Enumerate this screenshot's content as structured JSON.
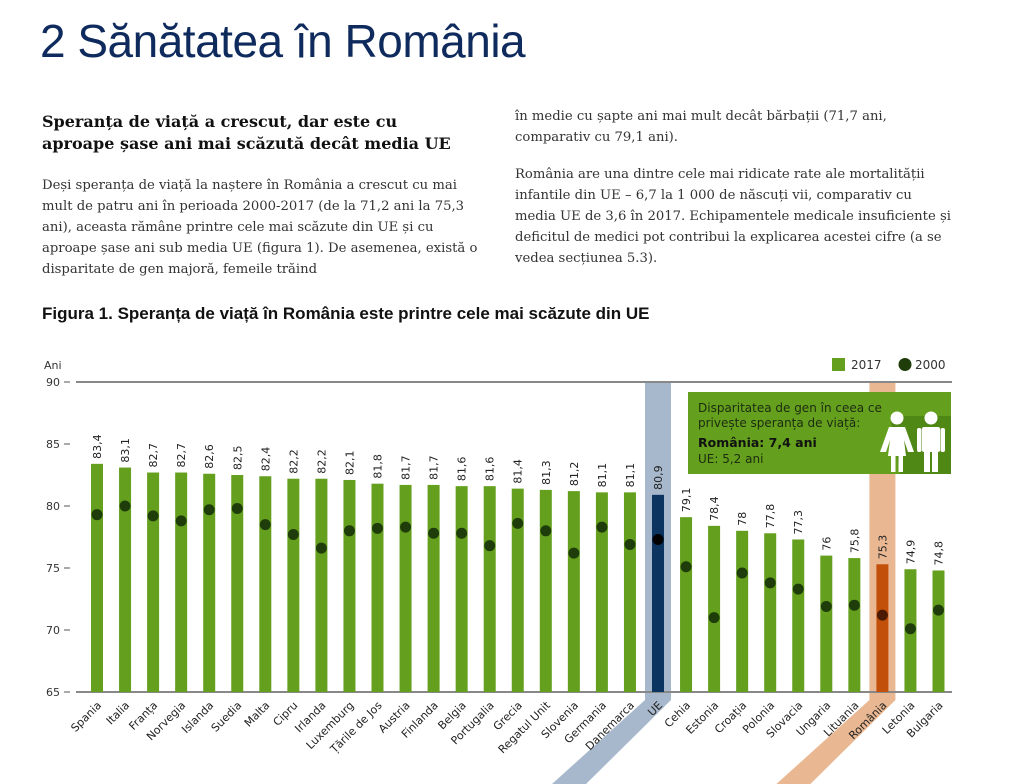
{
  "header": {
    "title": "2 Sănătatea în România"
  },
  "article": {
    "subheading": "Speranța de viață a crescut, dar este cu aproape șase ani mai scăzută decât media UE",
    "paragraph1": "Deși speranța de viață la naștere în România a crescut cu mai mult de patru ani în perioada 2000-2017 (de la 71,2 ani la 75,3 ani), aceasta rămâne printre cele mai scăzute din UE și cu aproape șase ani sub media UE (figura 1). De asemenea, există o disparitate de gen majoră, femeile trăind",
    "paragraph2": "în medie cu șapte ani mai mult decât bărbații (71,7 ani, comparativ cu 79,1 ani).",
    "paragraph3": "România are una dintre cele mai ridicate rate ale mortalității infantile din UE – 6,7 la 1 000 de născuți vii, comparativ cu media UE de 3,6 în 2017. Echipamentele medicale insuficiente și deficitul de medici pot contribui la explicarea acestei cifre (a se vedea secțiunea 5.3)."
  },
  "figure": {
    "title": "Figura 1. Speranța de viață în România este printre cele mai scăzute din UE",
    "info_box": {
      "line1": "Disparitatea de gen în ceea ce",
      "line2": "privește speranța de viață:",
      "romania": "România: 7,4 ani",
      "eu": "UE: 5,2 ani"
    }
  },
  "colors": {
    "bar": "#64a01e",
    "dot": "#1f3d0a",
    "eu_bar": "#0b3461",
    "eu_band": "#a8b8cc",
    "ro_bar": "#c2500a",
    "ro_band": "#e9b892",
    "box": "#64a01e",
    "axis": "#888888"
  },
  "chart_data": {
    "type": "bar",
    "title": "Figura 1. Speranța de viață în România este printre cele mai scăzute din UE",
    "ylabel": "Ani",
    "xlabel": "",
    "ylim": [
      65,
      90
    ],
    "yticks": [
      65,
      70,
      75,
      80,
      85,
      90
    ],
    "legend": {
      "position": "top-right",
      "entries": [
        "2017",
        "2000"
      ]
    },
    "categories": [
      "Spania",
      "Italia",
      "Franța",
      "Norvegia",
      "Islanda",
      "Suedia",
      "Malta",
      "Cipru",
      "Irlanda",
      "Luxemburg",
      "Țările de Jos",
      "Austria",
      "Finlanda",
      "Belgia",
      "Portugalia",
      "Grecia",
      "Regatul Unit",
      "Slovenia",
      "Germania",
      "Danemarca",
      "UE",
      "Cehia",
      "Estonia",
      "Croația",
      "Polonia",
      "Slovacia",
      "Ungaria",
      "Lituania",
      "România",
      "Letonia",
      "Bulgaria"
    ],
    "series": [
      {
        "name": "2017",
        "kind": "bar",
        "values": [
          83.4,
          83.1,
          82.7,
          82.7,
          82.6,
          82.5,
          82.4,
          82.2,
          82.2,
          82.1,
          81.8,
          81.7,
          81.7,
          81.6,
          81.6,
          81.4,
          81.3,
          81.2,
          81.1,
          81.1,
          80.9,
          79.1,
          78.4,
          78,
          77.8,
          77.3,
          76,
          75.8,
          75.3,
          74.9,
          74.8
        ],
        "labels": [
          "83,4",
          "83,1",
          "82,7",
          "82,7",
          "82,6",
          "82,5",
          "82,4",
          "82,2",
          "82,2",
          "82,1",
          "81,8",
          "81,7",
          "81,7",
          "81,6",
          "81,6",
          "81,4",
          "81,3",
          "81,2",
          "81,1",
          "81,1",
          "80,9",
          "79,1",
          "78,4",
          "78",
          "77,8",
          "77,3",
          "76",
          "75,8",
          "75,3",
          "74,9",
          "74,8"
        ]
      },
      {
        "name": "2000",
        "kind": "dot",
        "values": [
          79.3,
          80.0,
          79.2,
          78.8,
          79.7,
          79.8,
          78.5,
          77.7,
          76.6,
          78.0,
          78.2,
          78.3,
          77.8,
          77.8,
          76.8,
          78.6,
          78.0,
          76.2,
          78.3,
          76.9,
          77.3,
          75.1,
          71.0,
          74.6,
          73.8,
          73.3,
          71.9,
          72.0,
          71.2,
          70.1,
          71.6
        ]
      }
    ],
    "highlighted": {
      "eu": "UE",
      "country": "România"
    }
  }
}
